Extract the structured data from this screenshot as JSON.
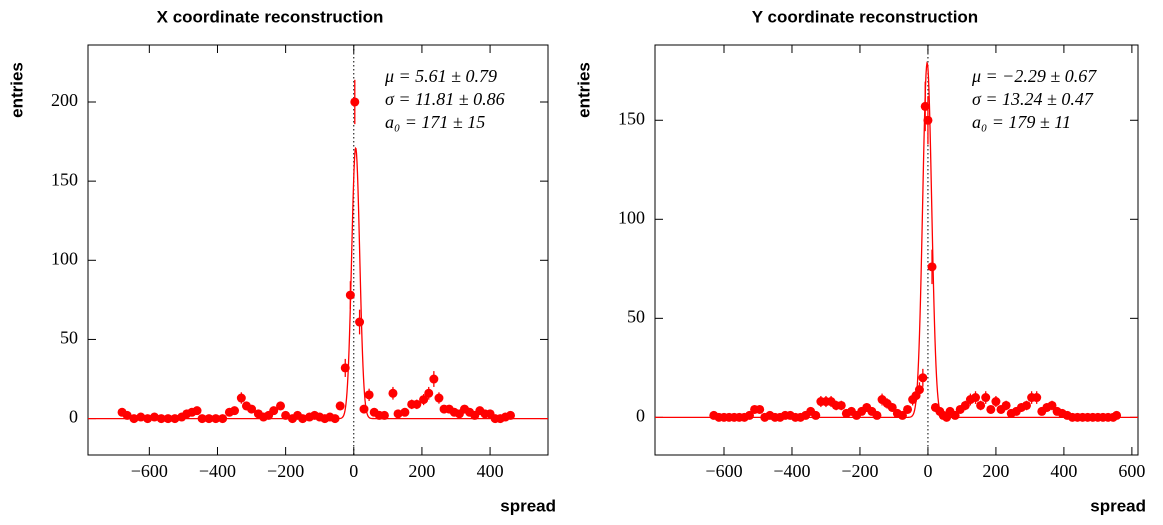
{
  "chart_data": [
    {
      "type": "scatter",
      "title": "X coordinate reconstruction",
      "xlabel": "spread",
      "ylabel": "entries",
      "color": "#ff0000",
      "x": [
        -680,
        -665,
        -645,
        -625,
        -605,
        -585,
        -565,
        -545,
        -525,
        -505,
        -490,
        -475,
        -460,
        -445,
        -425,
        -405,
        -385,
        -365,
        -350,
        -330,
        -315,
        -300,
        -280,
        -265,
        -250,
        -235,
        -215,
        -200,
        -180,
        -165,
        -150,
        -130,
        -115,
        -100,
        -85,
        -70,
        -55,
        -40,
        -25,
        -10,
        3,
        17,
        30,
        45,
        60,
        75,
        90,
        115,
        130,
        150,
        170,
        185,
        205,
        220,
        235,
        250,
        265,
        280,
        295,
        310,
        325,
        340,
        355,
        370,
        385,
        400,
        415,
        430,
        445,
        460
      ],
      "values": [
        4,
        2,
        0,
        1,
        0,
        1,
        0,
        0,
        0,
        1,
        3,
        4,
        5,
        0,
        0,
        0,
        0,
        4,
        5,
        13,
        8,
        6,
        3,
        1,
        2,
        5,
        8,
        2,
        0,
        2,
        0,
        1,
        2,
        1,
        0,
        1,
        0,
        8,
        32,
        78,
        200,
        61,
        6,
        15,
        4,
        2,
        2,
        16,
        3,
        4,
        9,
        9,
        12,
        16,
        25,
        13,
        6,
        6,
        4,
        3,
        6,
        4,
        2,
        5,
        3,
        3,
        0,
        0,
        1,
        2
      ],
      "errors": [
        2,
        1.4,
        0,
        1,
        0,
        1,
        0,
        0,
        0,
        1,
        1.7,
        2,
        2.2,
        0,
        0,
        0,
        0,
        2,
        2.2,
        3.6,
        2.8,
        2.4,
        1.7,
        1,
        1.4,
        2.2,
        2.8,
        1.4,
        0,
        1.4,
        0,
        1,
        1.4,
        1,
        0,
        1,
        0,
        2.8,
        5.7,
        8.8,
        14,
        7.8,
        2.4,
        3.9,
        2,
        1.4,
        1.4,
        4,
        1.7,
        2,
        3,
        3,
        3.5,
        4,
        5,
        3.6,
        2.4,
        2.4,
        2,
        1.7,
        2.4,
        2,
        1.4,
        2.2,
        1.7,
        1.7,
        0,
        0,
        1,
        1.4
      ],
      "xlim": [
        -780,
        570
      ],
      "ylim": [
        -23,
        236
      ],
      "xticks": [
        {
          "value": -600,
          "label": "−600"
        },
        {
          "value": -400,
          "label": "−400"
        },
        {
          "value": -200,
          "label": "−200"
        },
        0,
        200,
        400
      ],
      "yticks": [
        0,
        50,
        100,
        150,
        200
      ],
      "fit": {
        "mu": 5.61,
        "sigma": 11.81,
        "a0": 171
      },
      "annotations": [
        "μ = 5.61 ± 0.79",
        "σ = 11.81 ± 0.86",
        "a₀ = 171 ± 15"
      ]
    },
    {
      "type": "scatter",
      "title": "Y coordinate reconstruction",
      "xlabel": "spread",
      "ylabel": "entries",
      "color": "#ff0000",
      "x": [
        -630,
        -615,
        -600,
        -585,
        -570,
        -555,
        -540,
        -525,
        -510,
        -495,
        -480,
        -465,
        -450,
        -435,
        -420,
        -405,
        -390,
        -375,
        -360,
        -345,
        -330,
        -315,
        -300,
        -285,
        -270,
        -255,
        -240,
        -225,
        -210,
        -195,
        -180,
        -165,
        -150,
        -135,
        -120,
        -105,
        -90,
        -75,
        -60,
        -45,
        -35,
        -25,
        -15,
        -8,
        0,
        12,
        22,
        35,
        45,
        55,
        65,
        80,
        95,
        110,
        125,
        140,
        155,
        170,
        185,
        200,
        215,
        230,
        245,
        260,
        275,
        290,
        305,
        320,
        335,
        350,
        365,
        380,
        395,
        410,
        425,
        440,
        455,
        470,
        485,
        500,
        515,
        530,
        545,
        555
      ],
      "values": [
        1,
        0,
        0,
        0,
        0,
        0,
        0,
        1,
        4,
        4,
        0,
        1,
        0,
        0,
        1,
        1,
        0,
        0,
        1,
        3,
        1,
        8,
        8,
        8,
        6,
        6,
        2,
        3,
        1,
        3,
        5,
        3,
        1,
        9,
        7,
        5,
        2,
        1,
        4,
        9,
        11,
        14,
        20,
        157,
        150,
        76,
        5,
        3,
        1,
        0,
        3,
        1,
        4,
        6,
        9,
        10,
        6,
        10,
        4,
        8,
        4,
        6,
        2,
        3,
        5,
        6,
        10,
        10,
        3,
        5,
        6,
        3,
        2,
        1,
        0,
        0,
        0,
        0,
        0,
        0,
        0,
        0,
        0,
        1
      ],
      "errors": [
        1,
        0,
        0,
        0,
        0,
        0,
        0,
        1,
        2,
        2,
        0,
        1,
        0,
        0,
        1,
        1,
        0,
        0,
        1,
        1.7,
        1,
        2.8,
        2.8,
        2.8,
        2.4,
        2.4,
        1.4,
        1.7,
        1,
        1.7,
        2.2,
        1.7,
        1,
        3,
        2.6,
        2.2,
        1.4,
        1,
        2,
        3,
        3.3,
        3.7,
        4.5,
        12.5,
        12.2,
        8.7,
        2.2,
        1.7,
        1,
        0,
        1.7,
        1,
        2,
        2.4,
        3,
        3.2,
        2.4,
        3.2,
        2,
        2.8,
        2,
        2.4,
        1.4,
        1.7,
        2.2,
        2.4,
        3.2,
        3.2,
        1.7,
        2.2,
        2.4,
        1.7,
        1.4,
        1,
        0,
        0,
        0,
        0,
        0,
        0,
        0,
        0,
        0,
        1
      ],
      "xlim": [
        -803,
        618
      ],
      "ylim": [
        -19,
        188
      ],
      "xticks": [
        {
          "value": -600,
          "label": "−600"
        },
        {
          "value": -400,
          "label": "−400"
        },
        {
          "value": -200,
          "label": "−200"
        },
        0,
        200,
        400,
        600
      ],
      "yticks": [
        0,
        50,
        100,
        150
      ],
      "fit": {
        "mu": -2.29,
        "sigma": 13.24,
        "a0": 179
      },
      "annotations": [
        "μ = −2.29 ± 0.67",
        "σ = 13.24 ± 0.47",
        "a₀ = 179 ± 11"
      ]
    }
  ]
}
